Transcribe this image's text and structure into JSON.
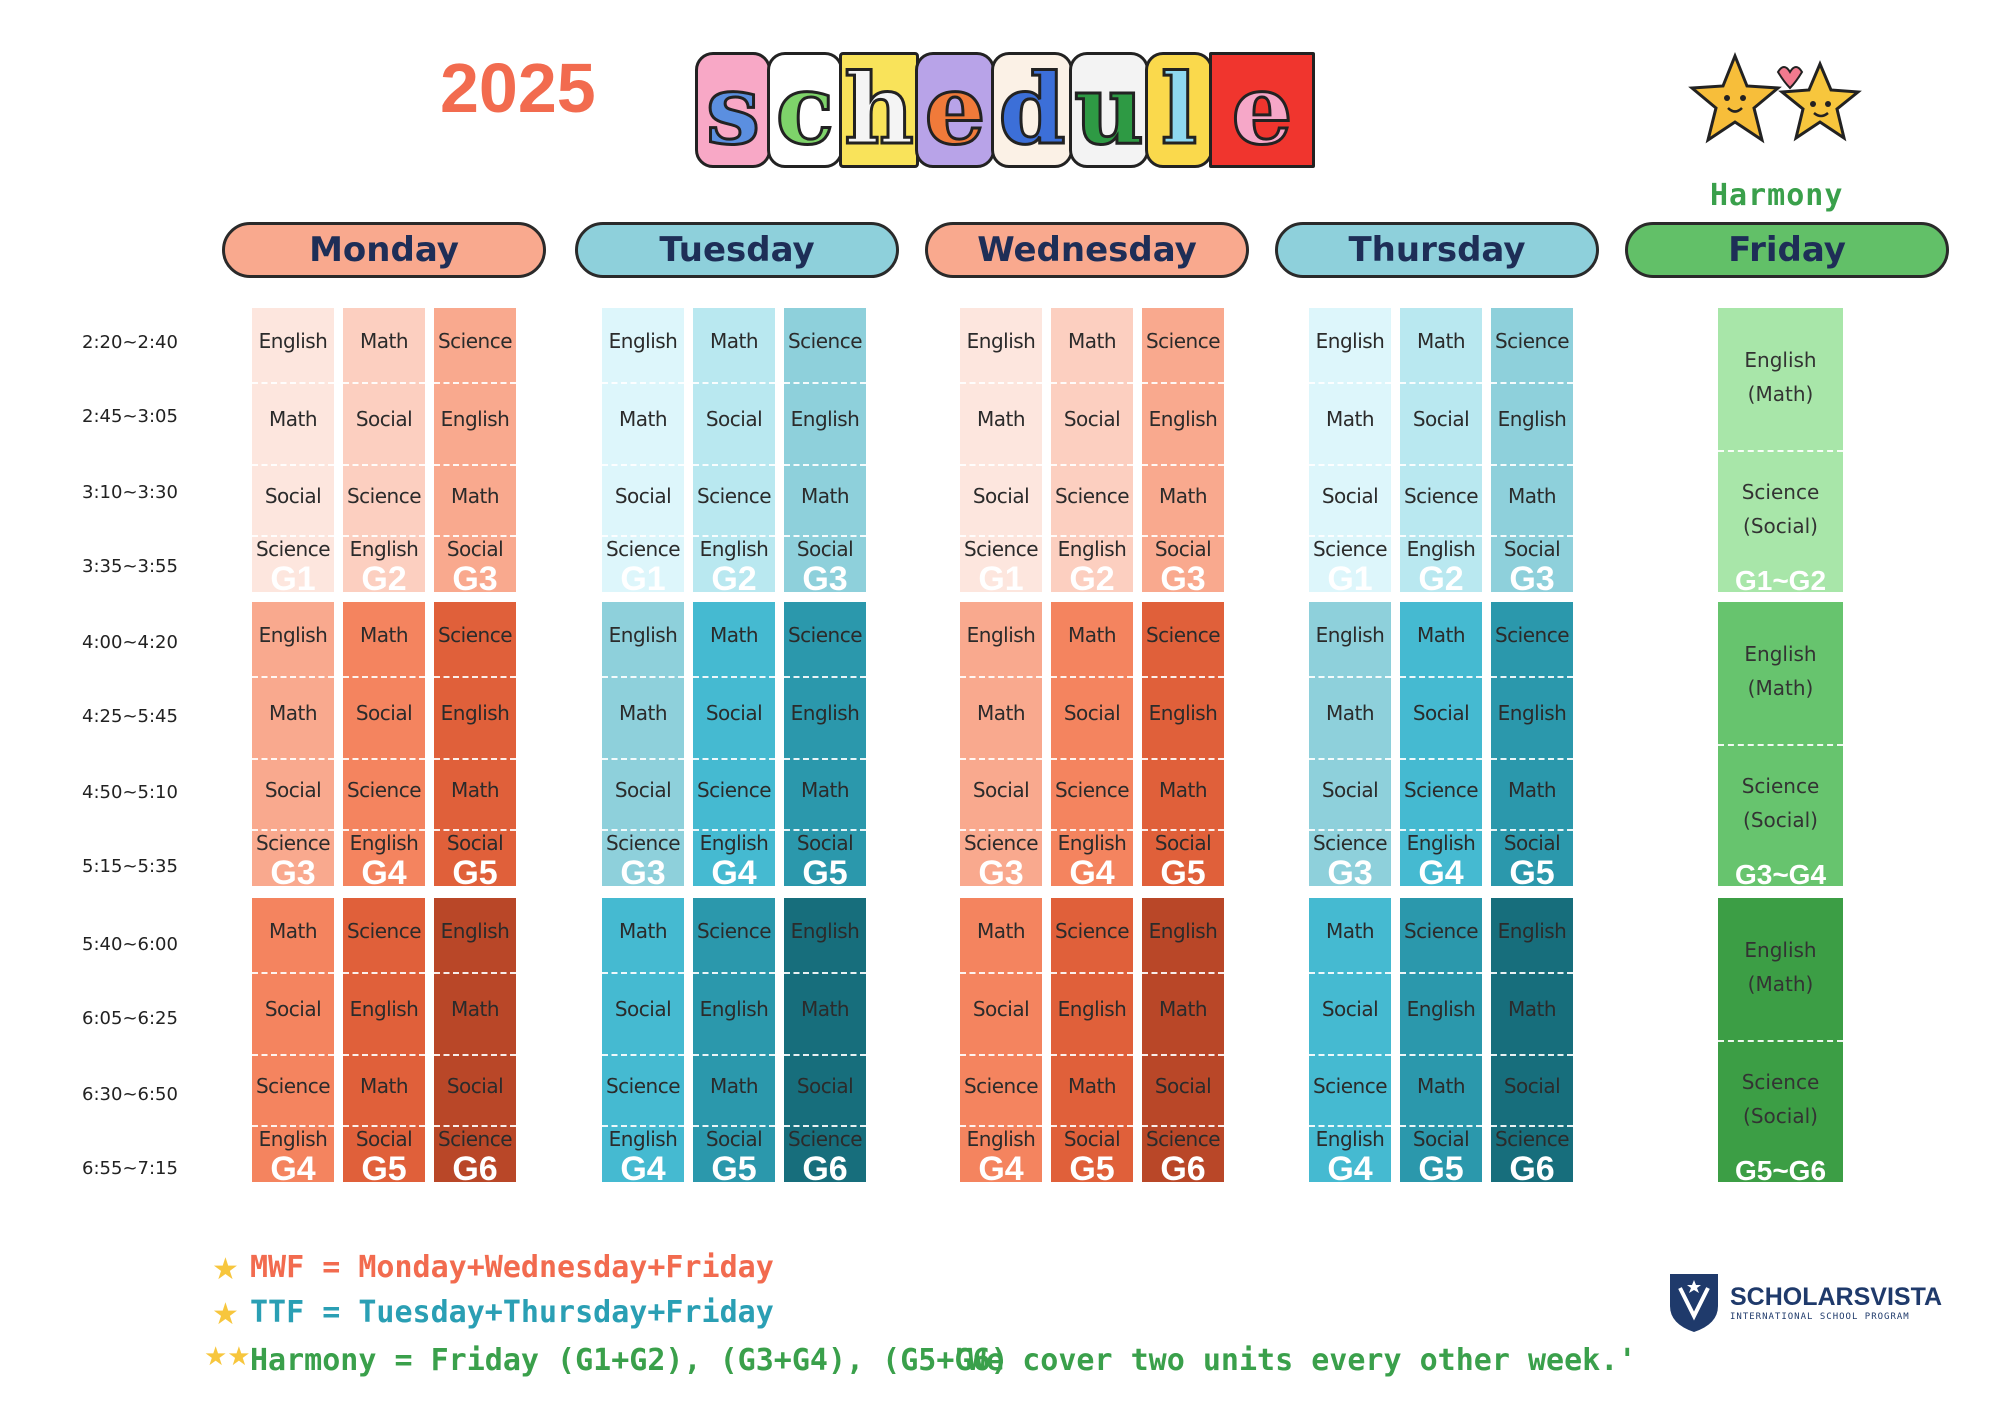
{
  "header": {
    "year": "2025",
    "title_letters": [
      "s",
      "c",
      "h",
      "e",
      "d",
      "u",
      "l",
      "e"
    ],
    "harmony_label": "Harmony"
  },
  "days": [
    "Monday",
    "Tuesday",
    "Wednesday",
    "Thursday",
    "Friday"
  ],
  "times": [
    "2:20~2:40",
    "2:45~3:05",
    "3:10~3:30",
    "3:35~3:55",
    "4:00~4:20",
    "4:25~5:45",
    "4:50~5:10",
    "5:15~5:35",
    "5:40~6:00",
    "6:05~6:25",
    "6:30~6:50",
    "6:55~7:15"
  ],
  "blocks": [
    {
      "grades": [
        "G1",
        "G2",
        "G3"
      ],
      "cols": [
        [
          "English",
          "Math",
          "Social",
          "Science"
        ],
        [
          "Math",
          "Social",
          "Science",
          "English"
        ],
        [
          "Science",
          "English",
          "Math",
          "Social"
        ]
      ]
    },
    {
      "grades": [
        "G3",
        "G4",
        "G5"
      ],
      "cols": [
        [
          "English",
          "Math",
          "Social",
          "Science"
        ],
        [
          "Math",
          "Social",
          "Science",
          "English"
        ],
        [
          "Science",
          "English",
          "Math",
          "Social"
        ]
      ]
    },
    {
      "grades": [
        "G4",
        "G5",
        "G6"
      ],
      "cols": [
        [
          "Math",
          "Social",
          "Science",
          "English"
        ],
        [
          "Science",
          "English",
          "Math",
          "Social"
        ],
        [
          "English",
          "Math",
          "Social",
          "Science"
        ]
      ]
    }
  ],
  "friday": [
    {
      "cells": [
        [
          "English",
          "(Math)"
        ],
        [
          "Science",
          "(Social)"
        ]
      ],
      "label": "G1~G2"
    },
    {
      "cells": [
        [
          "English",
          "(Math)"
        ],
        [
          "Science",
          "(Social)"
        ]
      ],
      "label": "G3~G4"
    },
    {
      "cells": [
        [
          "English",
          "(Math)"
        ],
        [
          "Science",
          "(Social)"
        ]
      ],
      "label": "G5~G6"
    }
  ],
  "legend": {
    "mwf": "MWF = Monday+Wednesday+Friday",
    "ttf": "TTF = Tuesday+Thursday+Friday",
    "harmony": "Harmony = Friday (G1+G2), (G3+G4), (G5+G6)",
    "note": "'We cover two units every other week.'"
  },
  "logo": {
    "name": "SCHOLARSVISTA",
    "tagline": "INTERNATIONAL SCHOOL PROGRAM"
  },
  "colors": {
    "orange_header": "#F9A98E",
    "teal_header": "#8ED0DB",
    "green_header": "#62C068",
    "orange_shades": [
      "#FDE6DE",
      "#FCCFC0",
      "#F9A98E",
      "#F9A98E",
      "#F4845F",
      "#E0603A",
      "#F4845F",
      "#E0603A",
      "#B94728"
    ],
    "teal_shades": [
      "#DDF6FB",
      "#B9E8F0",
      "#8ED0DB",
      "#8ED0DB",
      "#45BAD1",
      "#2B98AC",
      "#45BAD1",
      "#2B98AC",
      "#176E7C"
    ],
    "green_shades": [
      "#A8E6A9",
      "#67C46E",
      "#3C9E45"
    ],
    "mwf": "#F26B4F",
    "ttf": "#2A9FB4",
    "harmony": "#3AA04B"
  }
}
